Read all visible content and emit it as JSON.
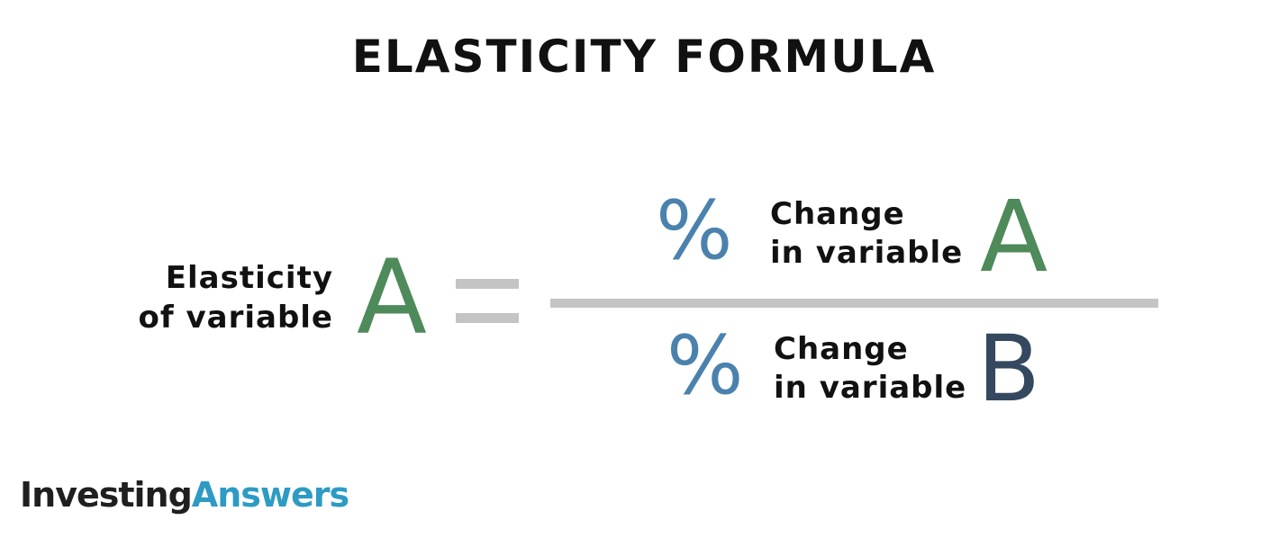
{
  "title": "ELASTICITY FORMULA",
  "lhs": {
    "label_line1": "Elasticity",
    "label_line2": "of variable",
    "letter": "A",
    "operator": "="
  },
  "numerator": {
    "symbol": "%",
    "label_line1": "Change",
    "label_line2": "in variable",
    "letter": "A"
  },
  "denominator": {
    "symbol": "%",
    "label_line1": "Change",
    "label_line2": "in variable",
    "letter": "B"
  },
  "logo": {
    "part1": "Investing",
    "part2": "Answers"
  },
  "colors": {
    "variable_a": "#4e8a5a",
    "variable_b": "#34485f",
    "percent": "#4a82ad",
    "rule": "#c4c4c4",
    "logo_accent": "#2d9bc4"
  }
}
